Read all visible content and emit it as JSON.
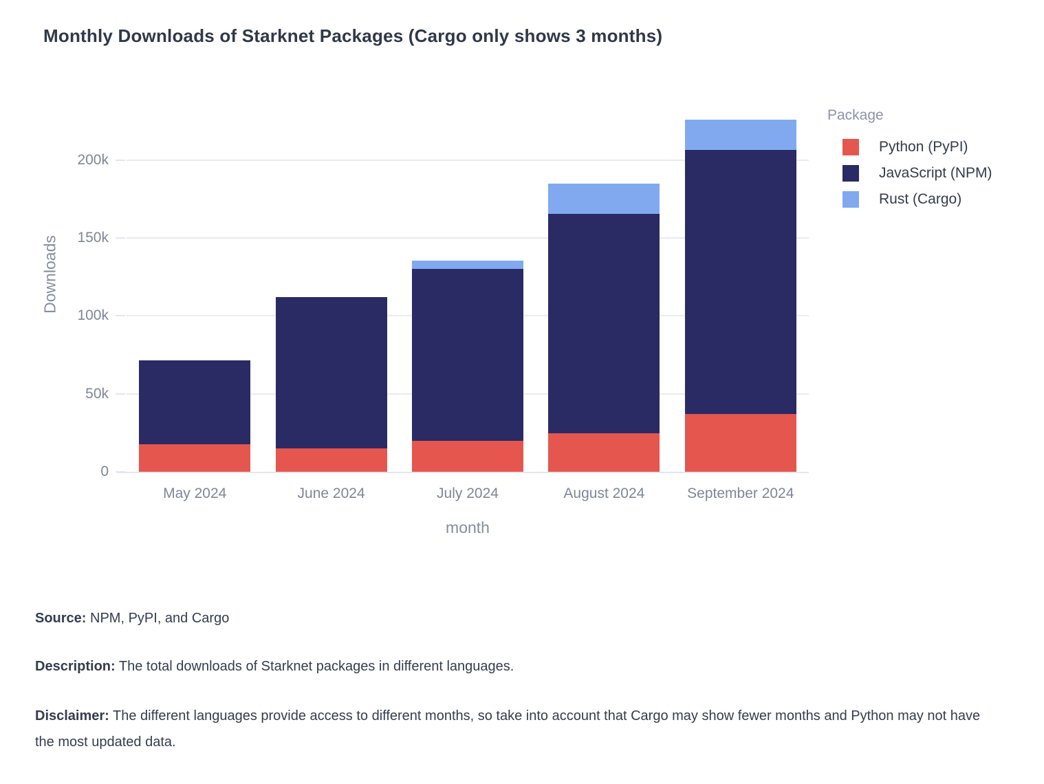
{
  "title": "Monthly Downloads of Starknet Packages (Cargo only shows 3 months)",
  "chart_data": {
    "type": "bar",
    "stacked": true,
    "title": "Monthly Downloads of Starknet Packages (Cargo only shows 3 months)",
    "xlabel": "month",
    "ylabel": "Downloads",
    "categories": [
      "May 2024",
      "June 2024",
      "July 2024",
      "August 2024",
      "September 2024"
    ],
    "series": [
      {
        "name": "Python (PyPI)",
        "color": "#E5564E",
        "values": [
          17500,
          15000,
          20000,
          24500,
          37000
        ]
      },
      {
        "name": "JavaScript (NPM)",
        "color": "#2A2A64",
        "values": [
          54000,
          97000,
          110000,
          141000,
          169500
        ]
      },
      {
        "name": "Rust (Cargo)",
        "color": "#80A9F0",
        "values": [
          0,
          0,
          5500,
          19500,
          19500
        ]
      }
    ],
    "ylim": [
      0,
      232000
    ],
    "yticks": [
      {
        "value": 0,
        "label": "0"
      },
      {
        "value": 50000,
        "label": "50k"
      },
      {
        "value": 100000,
        "label": "100k"
      },
      {
        "value": 150000,
        "label": "150k"
      },
      {
        "value": 200000,
        "label": "200k"
      }
    ],
    "grid": true,
    "legend_title": "Package",
    "legend_position": "right"
  },
  "footer": {
    "source_label": "Source:",
    "source_text": " NPM, PyPI, and Cargo",
    "description_label": "Description:",
    "description_text": " The total downloads of Starknet packages in different languages.",
    "disclaimer_label": "Disclaimer:",
    "disclaimer_text": " The different languages provide access to different months, so take into account that Cargo may show fewer months and Python may not have the most updated data."
  },
  "colors": {
    "title_text": "#303849",
    "axis_text": "#7F8699",
    "footer_text": "#343C4E",
    "gridline": "#E9EBF1",
    "axis_line": "#E3E6ED",
    "legend_title_text": "#8B93A7",
    "legend_item_text": "#333B4C"
  }
}
